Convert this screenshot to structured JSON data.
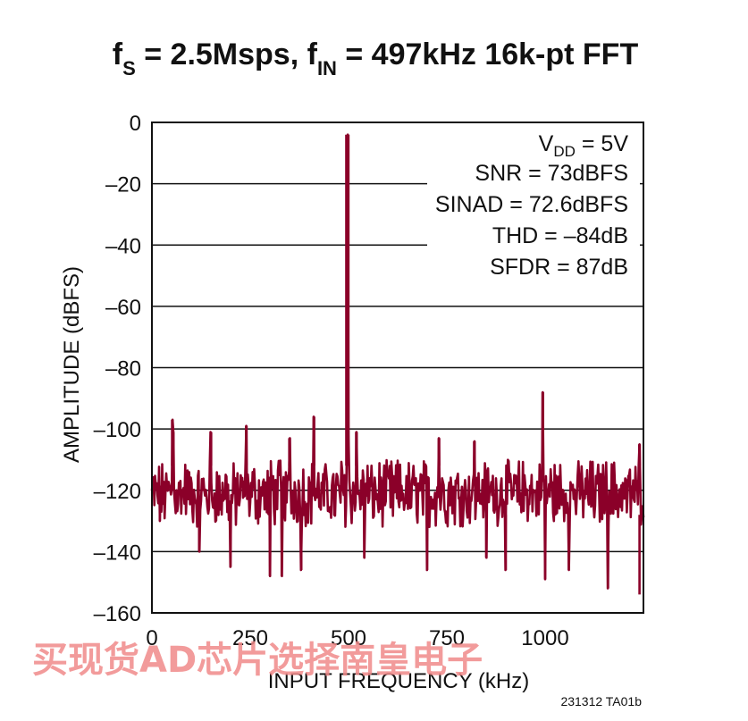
{
  "chart_data": {
    "type": "line",
    "title_parts": [
      "f",
      "S",
      " = 2.5Msps, f",
      "IN",
      " = 497kHz 16k-pt FFT"
    ],
    "xlabel": "INPUT FREQUENCY (kHz)",
    "ylabel": "AMPLITUDE (dBFS)",
    "xlim": [
      0,
      1250
    ],
    "ylim": [
      -160,
      0
    ],
    "x_ticks": [
      0,
      250,
      500,
      750,
      1000
    ],
    "x_tick_labels": [
      "0",
      "250",
      "500",
      "750",
      "1000"
    ],
    "y_ticks": [
      0,
      -20,
      -40,
      -60,
      -80,
      -100,
      -120,
      -140,
      -160
    ],
    "y_tick_labels": [
      "0",
      "–20",
      "–40",
      "–60",
      "–80",
      "–100",
      "–120",
      "–140",
      "–160"
    ],
    "grid": "horizontal",
    "series": [
      {
        "color": "#8b0029",
        "noise_floor_dbfs": [
          -128,
          -110
        ],
        "peaks": [
          {
            "x": 497,
            "y": -4
          },
          {
            "x": 497,
            "y": -90
          },
          {
            "x": 994,
            "y": -88
          },
          {
            "x": 52,
            "y": -97
          },
          {
            "x": 412,
            "y": -96
          },
          {
            "x": 54,
            "y": -101
          },
          {
            "x": 150,
            "y": -101
          },
          {
            "x": 240,
            "y": -99
          },
          {
            "x": 350,
            "y": -103
          },
          {
            "x": 520,
            "y": -101
          },
          {
            "x": 730,
            "y": -103
          },
          {
            "x": 820,
            "y": -104
          },
          {
            "x": 1240,
            "y": -105
          }
        ],
        "dips": [
          {
            "x": 20,
            "y": -130
          },
          {
            "x": 120,
            "y": -140
          },
          {
            "x": 200,
            "y": -145
          },
          {
            "x": 300,
            "y": -148
          },
          {
            "x": 330,
            "y": -148
          },
          {
            "x": 380,
            "y": -146
          },
          {
            "x": 540,
            "y": -142
          },
          {
            "x": 700,
            "y": -146
          },
          {
            "x": 850,
            "y": -142
          },
          {
            "x": 900,
            "y": -146
          },
          {
            "x": 1000,
            "y": -149
          },
          {
            "x": 1060,
            "y": -146
          },
          {
            "x": 1160,
            "y": -152
          },
          {
            "x": 1240,
            "y": -154
          }
        ]
      }
    ],
    "annotations": [
      {
        "parts": [
          "V",
          "DD",
          " = 5V"
        ]
      },
      {
        "text": "SNR = 73dBFS"
      },
      {
        "text": "SINAD = 72.6dBFS"
      },
      {
        "text": "THD = –84dB"
      },
      {
        "text": "SFDR = 87dB"
      }
    ]
  },
  "figure_code": "231312 TA01b",
  "watermark": "买现货AD芯片选择南皇电子"
}
